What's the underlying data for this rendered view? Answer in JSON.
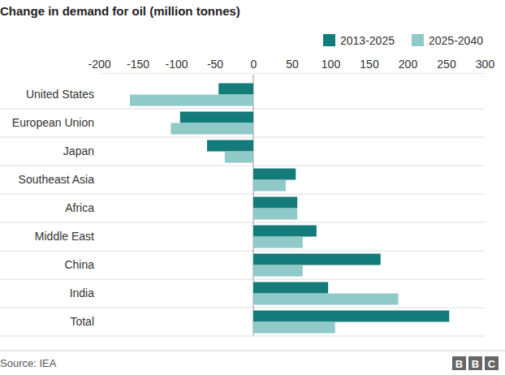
{
  "chart_data": {
    "type": "bar",
    "orientation": "horizontal",
    "title": "Change in demand for oil (million tonnes)",
    "categories": [
      "United States",
      "European Union",
      "Japan",
      "Southeast Asia",
      "Africa",
      "Middle East",
      "China",
      "India",
      "Total"
    ],
    "series": [
      {
        "name": "2013-2025",
        "color": "#137b79",
        "values": [
          -45,
          -95,
          -60,
          55,
          57,
          82,
          165,
          97,
          254
        ]
      },
      {
        "name": "2025-2040",
        "color": "#8fc9c8",
        "values": [
          -160,
          -107,
          -37,
          42,
          57,
          64,
          64,
          188,
          106
        ]
      }
    ],
    "xlim": [
      -200,
      300
    ],
    "xticks": [
      -200,
      -150,
      -100,
      -50,
      0,
      50,
      100,
      150,
      200,
      250,
      300
    ],
    "legend": "top-right",
    "source": "Source: IEA",
    "logo": "BBC"
  }
}
